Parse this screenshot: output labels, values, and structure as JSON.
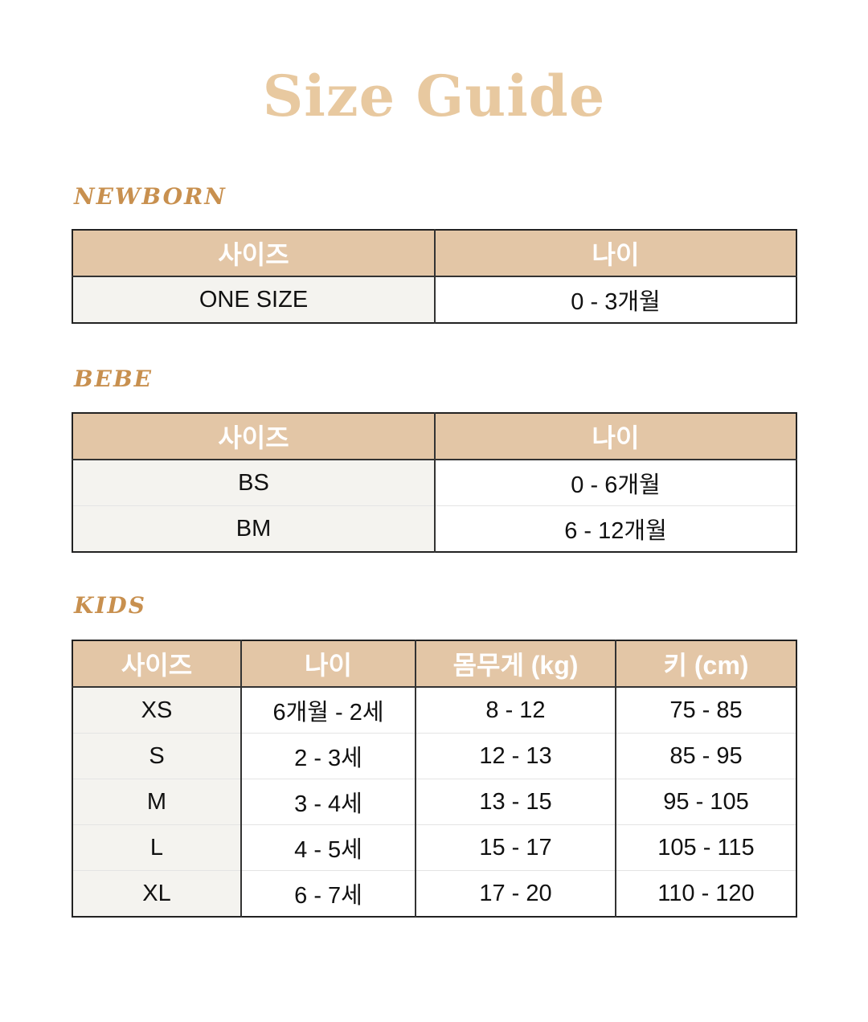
{
  "title": "Size Guide",
  "newborn": {
    "label": "NEWBORN",
    "headers": [
      "사이즈",
      "나이"
    ],
    "rows": [
      [
        "ONE SIZE",
        "0 - 3개월"
      ]
    ]
  },
  "bebe": {
    "label": "BEBE",
    "headers": [
      "사이즈",
      "나이"
    ],
    "rows": [
      [
        "BS",
        "0 - 6개월"
      ],
      [
        "BM",
        "6 - 12개월"
      ]
    ]
  },
  "kids": {
    "label": "KIDS",
    "headers": [
      "사이즈",
      "나이",
      "몸무게 (kg)",
      "키 (cm)"
    ],
    "rows": [
      [
        "XS",
        "6개월 - 2세",
        "8 - 12",
        "75 - 85"
      ],
      [
        "S",
        "2 - 3세",
        "12 - 13",
        "85 - 95"
      ],
      [
        "M",
        "3 - 4세",
        "13 - 15",
        "95 - 105"
      ],
      [
        "L",
        "4 - 5세",
        "15 - 17",
        "105 - 115"
      ],
      [
        "XL",
        "6 - 7세",
        "17 - 20",
        "110 - 120"
      ]
    ]
  },
  "colors": {
    "title": "#e8c9a0",
    "section": "#c8904f",
    "header_bg": "#e3c6a6",
    "first_col_bg": "#f4f3ef"
  }
}
